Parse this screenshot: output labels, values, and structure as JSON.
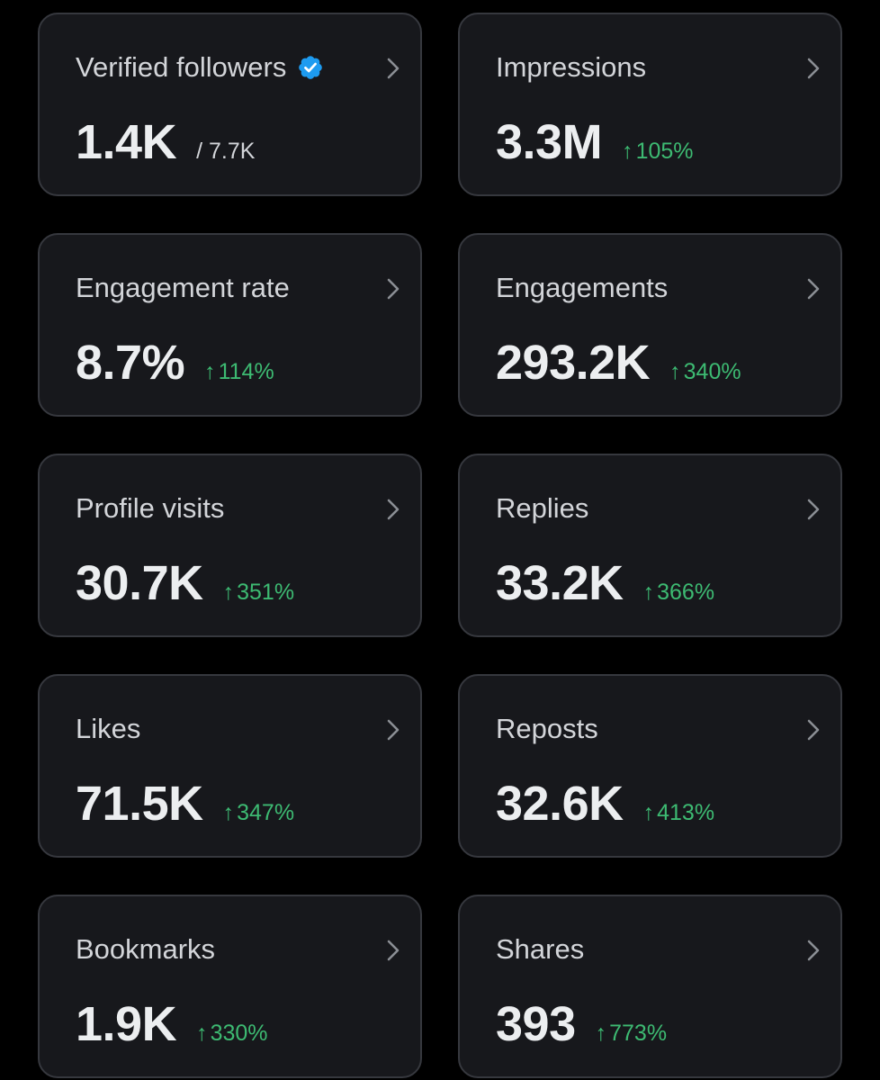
{
  "colors": {
    "background": "#000000",
    "card_background": "#17181c",
    "card_border": "#36383e",
    "label": "#d3d5d9",
    "value": "#eceef0",
    "positive_change": "#3dba72",
    "verified_badge": "#1d9bf0"
  },
  "icons": {
    "verified": "verified-badge-icon",
    "chevron": "chevron-right-icon",
    "trend": "arrow-up-icon"
  },
  "metrics": [
    {
      "label": "Verified followers",
      "value": "1.4K",
      "total": "/ 7.7K"
    },
    {
      "label": "Impressions",
      "value": "3.3M",
      "arrow": "↑",
      "change": "105%"
    },
    {
      "label": "Engagement rate",
      "value": "8.7%",
      "arrow": "↑",
      "change": "114%"
    },
    {
      "label": "Engagements",
      "value": "293.2K",
      "arrow": "↑",
      "change": "340%"
    },
    {
      "label": "Profile visits",
      "value": "30.7K",
      "arrow": "↑",
      "change": "351%"
    },
    {
      "label": "Replies",
      "value": "33.2K",
      "arrow": "↑",
      "change": "366%"
    },
    {
      "label": "Likes",
      "value": "71.5K",
      "arrow": "↑",
      "change": "347%"
    },
    {
      "label": "Reposts",
      "value": "32.6K",
      "arrow": "↑",
      "change": "413%"
    },
    {
      "label": "Bookmarks",
      "value": "1.9K",
      "arrow": "↑",
      "change": "330%"
    },
    {
      "label": "Shares",
      "value": "393",
      "arrow": "↑",
      "change": "773%"
    }
  ]
}
